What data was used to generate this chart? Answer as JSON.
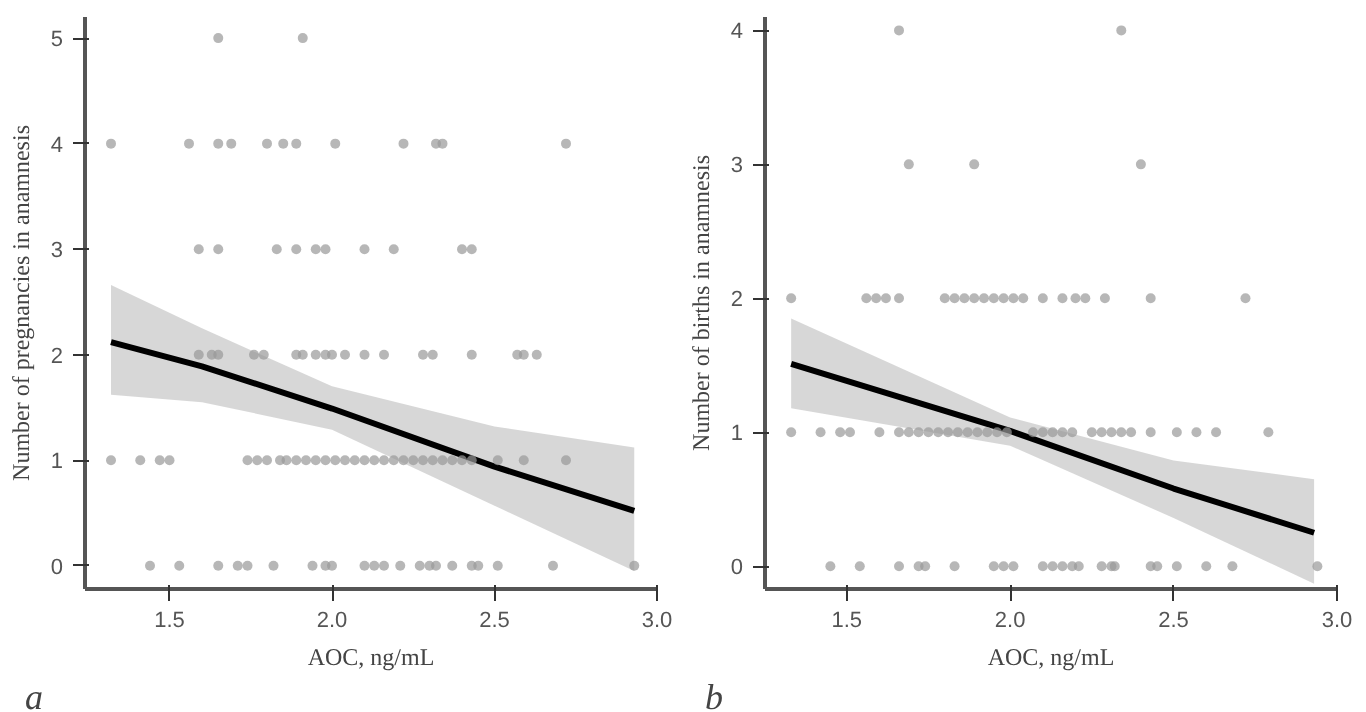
{
  "chart_data": [
    {
      "type": "scatter",
      "xlabel": "AOC, ng/mL",
      "ylabel": "Number of pregnancies in anamnesis",
      "annotations": [
        "a"
      ],
      "xlim": [
        1.24,
        3.0
      ],
      "ylim": [
        -0.22,
        5.2
      ],
      "xticks": [
        {
          "value": 1.5,
          "label": "1.5"
        },
        {
          "value": 2.0,
          "label": "2.0"
        },
        {
          "value": 2.5,
          "label": "2.5"
        },
        {
          "value": 3.0,
          "label": "3.0"
        }
      ],
      "yticks": [
        0,
        1,
        2,
        3,
        4,
        5
      ],
      "grid": false,
      "series": [
        {
          "type": "scatter",
          "marker": "circle",
          "color": "#999999",
          "x": [
            1.65,
            1.91,
            1.32,
            1.56,
            1.65,
            1.69,
            1.8,
            1.85,
            1.89,
            2.01,
            2.22,
            2.32,
            2.34,
            2.72,
            1.59,
            1.65,
            1.83,
            1.89,
            1.95,
            1.98,
            2.1,
            2.19,
            2.4,
            2.43,
            1.59,
            1.63,
            1.65,
            1.76,
            1.79,
            1.89,
            1.91,
            1.95,
            1.98,
            2.0,
            2.04,
            2.1,
            2.16,
            2.28,
            2.31,
            2.43,
            2.57,
            2.59,
            2.63,
            1.32,
            1.41,
            1.47,
            1.5,
            1.74,
            1.77,
            1.8,
            1.84,
            1.86,
            1.89,
            1.92,
            1.95,
            1.98,
            2.01,
            2.04,
            2.07,
            2.1,
            2.13,
            2.16,
            2.19,
            2.22,
            2.25,
            2.28,
            2.31,
            2.34,
            2.37,
            2.4,
            2.43,
            2.51,
            2.59,
            2.72,
            1.44,
            1.53,
            1.65,
            1.71,
            1.74,
            1.82,
            1.94,
            1.98,
            2.0,
            2.1,
            2.13,
            2.16,
            2.21,
            2.27,
            2.3,
            2.32,
            2.37,
            2.43,
            2.45,
            2.51,
            2.68,
            2.93
          ],
          "values": [
            5,
            5,
            4,
            4,
            4,
            4,
            4,
            4,
            4,
            4,
            4,
            4,
            4,
            4,
            3,
            3,
            3,
            3,
            3,
            3,
            3,
            3,
            3,
            3,
            2,
            2,
            2,
            2,
            2,
            2,
            2,
            2,
            2,
            2,
            2,
            2,
            2,
            2,
            2,
            2,
            2,
            2,
            2,
            1,
            1,
            1,
            1,
            1,
            1,
            1,
            1,
            1,
            1,
            1,
            1,
            1,
            1,
            1,
            1,
            1,
            1,
            1,
            1,
            1,
            1,
            1,
            1,
            1,
            1,
            1,
            1,
            1,
            1,
            1,
            0,
            0,
            0,
            0,
            0,
            0,
            0,
            0,
            0,
            0,
            0,
            0,
            0,
            0,
            0,
            0,
            0,
            0,
            0,
            0,
            0,
            0
          ]
        },
        {
          "type": "line",
          "color": "#000000",
          "x": [
            1.32,
            1.6,
            2.0,
            2.5,
            2.93
          ],
          "values": [
            2.12,
            1.89,
            1.49,
            0.94,
            0.52
          ],
          "lower": [
            1.62,
            1.55,
            1.29,
            0.57,
            -0.05
          ],
          "upper": [
            2.66,
            2.25,
            1.7,
            1.32,
            1.12
          ]
        }
      ]
    },
    {
      "type": "scatter",
      "xlabel": "AOC, ng/mL",
      "ylabel": "Number of births in anamnesis",
      "annotations": [
        "b"
      ],
      "xlim": [
        1.25,
        3.0
      ],
      "ylim": [
        -0.17,
        4.1
      ],
      "xticks": [
        {
          "value": 1.5,
          "label": "1.5"
        },
        {
          "value": 2.0,
          "label": "2.0"
        },
        {
          "value": 2.5,
          "label": "2.5"
        },
        {
          "value": 3.0,
          "label": "3.0"
        }
      ],
      "yticks": [
        0,
        1,
        2,
        3,
        4
      ],
      "grid": false,
      "series": [
        {
          "type": "scatter",
          "marker": "circle",
          "color": "#999999",
          "x": [
            1.66,
            2.34,
            1.69,
            1.89,
            2.4,
            1.33,
            1.56,
            1.59,
            1.62,
            1.66,
            1.8,
            1.83,
            1.86,
            1.89,
            1.92,
            1.95,
            1.98,
            2.01,
            2.04,
            2.1,
            2.16,
            2.2,
            2.23,
            2.29,
            2.43,
            2.72,
            1.33,
            1.42,
            1.48,
            1.51,
            1.6,
            1.66,
            1.69,
            1.72,
            1.75,
            1.78,
            1.81,
            1.84,
            1.87,
            1.9,
            1.93,
            1.96,
            1.99,
            2.07,
            2.1,
            2.13,
            2.16,
            2.19,
            2.25,
            2.28,
            2.31,
            2.34,
            2.37,
            2.43,
            2.51,
            2.57,
            2.63,
            2.79,
            1.45,
            1.54,
            1.66,
            1.72,
            1.74,
            1.83,
            1.95,
            1.98,
            2.01,
            2.1,
            2.13,
            2.16,
            2.19,
            2.21,
            2.28,
            2.31,
            2.32,
            2.43,
            2.45,
            2.51,
            2.6,
            2.68,
            2.94
          ],
          "values": [
            4,
            4,
            3,
            3,
            3,
            2,
            2,
            2,
            2,
            2,
            2,
            2,
            2,
            2,
            2,
            2,
            2,
            2,
            2,
            2,
            2,
            2,
            2,
            2,
            2,
            2,
            1,
            1,
            1,
            1,
            1,
            1,
            1,
            1,
            1,
            1,
            1,
            1,
            1,
            1,
            1,
            1,
            1,
            1,
            1,
            1,
            1,
            1,
            1,
            1,
            1,
            1,
            1,
            1,
            1,
            1,
            1,
            1,
            0,
            0,
            0,
            0,
            0,
            0,
            0,
            0,
            0,
            0,
            0,
            0,
            0,
            0,
            0,
            0,
            0,
            0,
            0,
            0,
            0,
            0,
            0
          ]
        },
        {
          "type": "line",
          "color": "#000000",
          "x": [
            1.33,
            2.0,
            2.5,
            2.93
          ],
          "values": [
            1.51,
            1.01,
            0.58,
            0.25
          ],
          "lower": [
            1.18,
            0.9,
            0.36,
            -0.13
          ],
          "upper": [
            1.85,
            1.11,
            0.79,
            0.65
          ]
        }
      ]
    }
  ]
}
